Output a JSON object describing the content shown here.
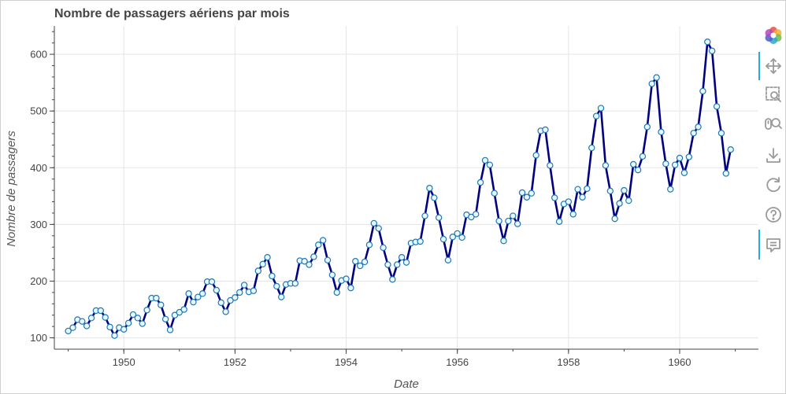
{
  "chart_data": {
    "type": "line",
    "title": "Nombre de passagers aériens par mois",
    "xlabel": "Date",
    "ylabel": "Nombre de passagers",
    "x_start": "1949-01",
    "x_frequency": "monthly",
    "xlim": [
      "1948-10",
      "1961-06"
    ],
    "ylim": [
      80,
      650
    ],
    "x_ticks": [
      "1950",
      "1952",
      "1954",
      "1956",
      "1958",
      "1960"
    ],
    "y_ticks": [
      100,
      200,
      300,
      400,
      500,
      600
    ],
    "grid": true,
    "line_color": "#000080",
    "marker_fill": "#e8f8ff",
    "marker_edge": "#1f77b4",
    "series": [
      {
        "values": [
          112,
          118,
          132,
          129,
          121,
          135,
          148,
          148,
          136,
          119,
          104,
          118,
          115,
          126,
          141,
          135,
          125,
          149,
          170,
          170,
          158,
          133,
          114,
          140,
          145,
          150,
          178,
          163,
          172,
          178,
          199,
          199,
          184,
          162,
          146,
          166,
          171,
          180,
          193,
          181,
          183,
          218,
          230,
          242,
          209,
          191,
          172,
          194,
          196,
          196,
          236,
          235,
          229,
          243,
          264,
          272,
          237,
          211,
          180,
          201,
          204,
          188,
          235,
          227,
          234,
          264,
          302,
          293,
          259,
          229,
          203,
          229,
          242,
          233,
          267,
          269,
          270,
          315,
          364,
          347,
          312,
          274,
          237,
          278,
          284,
          277,
          317,
          313,
          318,
          374,
          413,
          405,
          355,
          306,
          271,
          306,
          315,
          301,
          356,
          348,
          355,
          422,
          465,
          467,
          404,
          347,
          305,
          336,
          340,
          318,
          362,
          348,
          363,
          435,
          491,
          505,
          404,
          359,
          310,
          337,
          360,
          342,
          406,
          396,
          420,
          472,
          548,
          559,
          463,
          407,
          362,
          405,
          417,
          391,
          419,
          461,
          472,
          535,
          622,
          606,
          508,
          461,
          390,
          432
        ]
      }
    ]
  },
  "toolbar": {
    "logo": "bokeh-logo-icon",
    "tools": [
      "pan-icon",
      "box-zoom-icon",
      "wheel-zoom-icon",
      "save-icon",
      "reset-icon",
      "help-icon",
      "hover-icon"
    ]
  }
}
